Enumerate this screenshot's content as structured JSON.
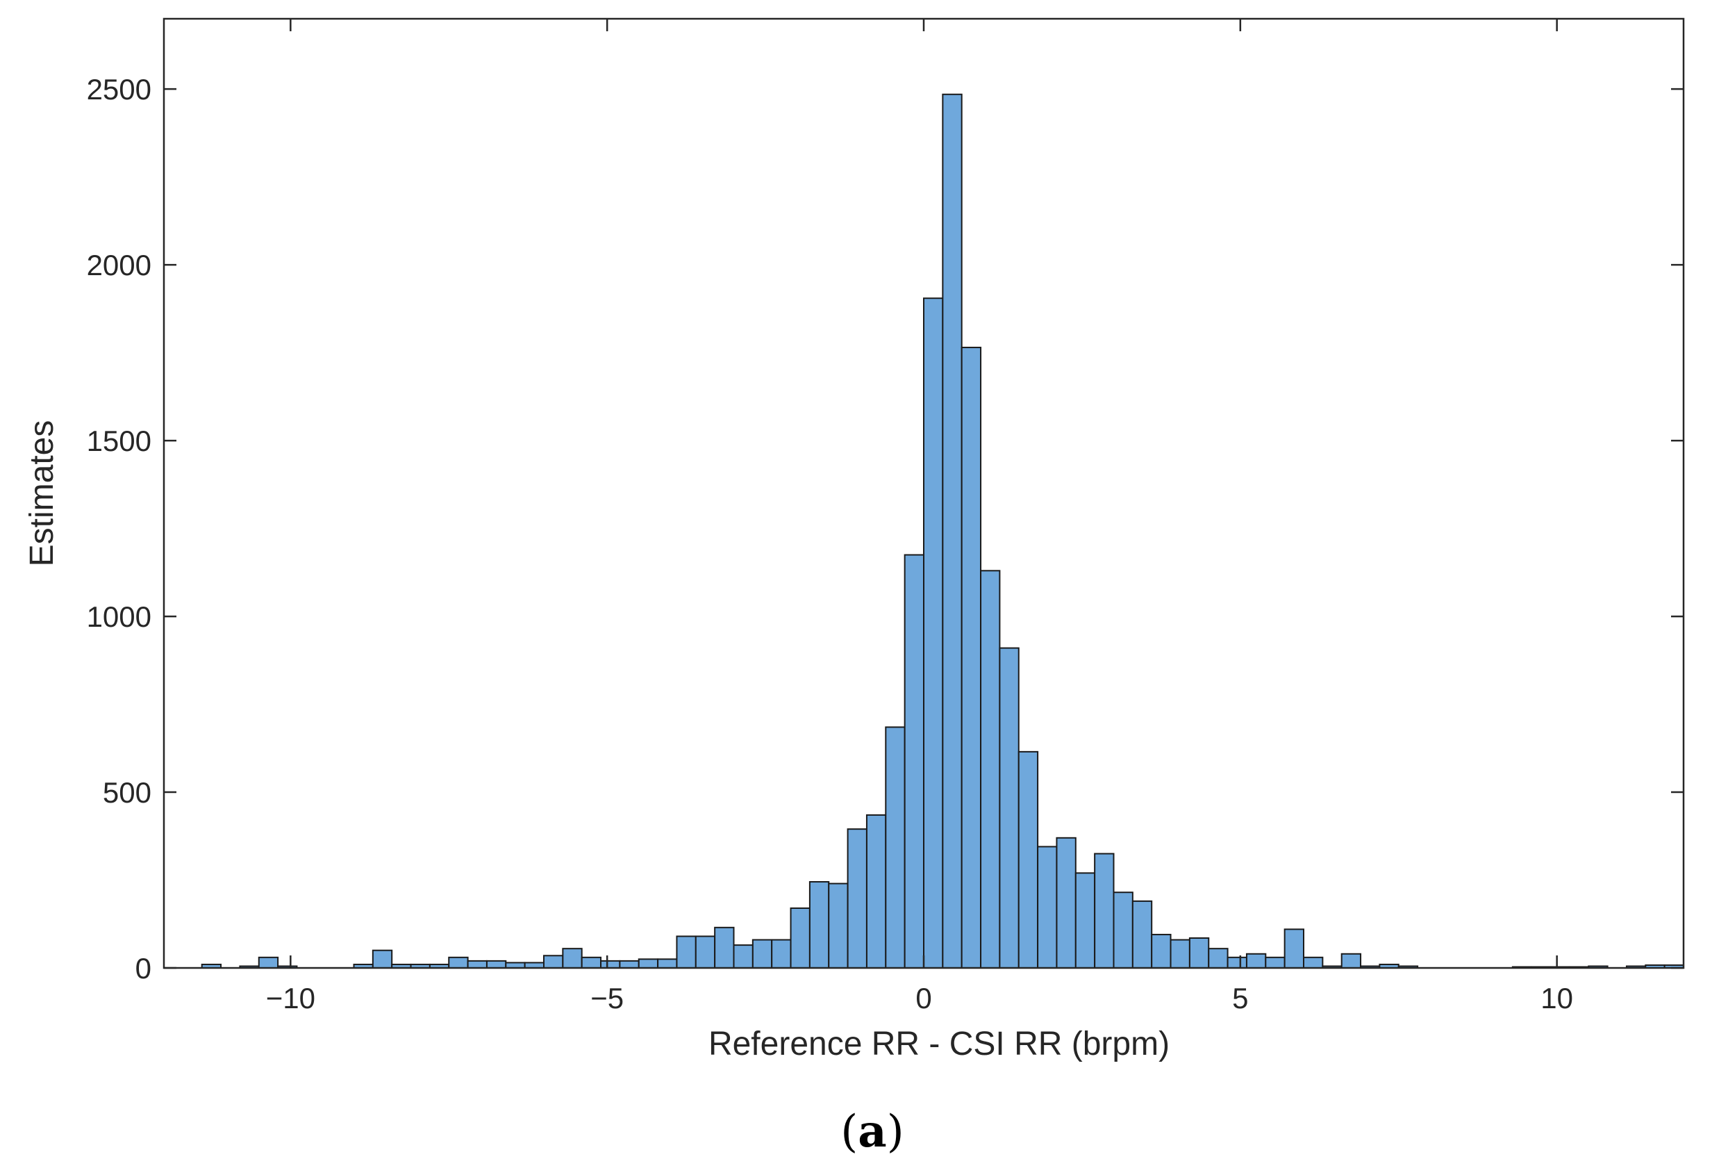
{
  "chart_data": {
    "type": "bar",
    "subtype": "histogram",
    "xlabel": "Reference RR - CSI RR (brpm)",
    "ylabel": "Estimates",
    "xlim": [
      -12,
      12
    ],
    "ylim": [
      0,
      2700
    ],
    "xticks": [
      -10,
      -5,
      0,
      5,
      10
    ],
    "xtick_labels": [
      "−10",
      "−5",
      "0",
      "5",
      "10"
    ],
    "yticks": [
      0,
      500,
      1000,
      1500,
      2000,
      2500
    ],
    "ytick_labels": [
      "0",
      "500",
      "1000",
      "1500",
      "2000",
      "2500"
    ],
    "bin_width": 0.3,
    "bin_start": -11.4,
    "values": [
      10,
      0,
      5,
      30,
      5,
      0,
      0,
      0,
      10,
      50,
      10,
      10,
      10,
      30,
      20,
      20,
      15,
      15,
      35,
      55,
      30,
      20,
      20,
      25,
      25,
      90,
      90,
      115,
      65,
      80,
      80,
      170,
      245,
      240,
      395,
      435,
      685,
      1175,
      1905,
      2485,
      1765,
      1130,
      910,
      615,
      345,
      370,
      270,
      325,
      215,
      190,
      95,
      80,
      85,
      55,
      30,
      40,
      30,
      110,
      30,
      5,
      40,
      5,
      10,
      5,
      0,
      0,
      0,
      0,
      0,
      3,
      3,
      3,
      3,
      5,
      0,
      5,
      8,
      8
    ],
    "bar_color": "#6fa8dc",
    "edge_color": "#1a1a1a",
    "grid": false,
    "box": true,
    "caption": "(a)"
  }
}
